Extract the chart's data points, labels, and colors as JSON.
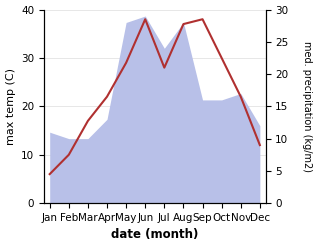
{
  "months": [
    "Jan",
    "Feb",
    "Mar",
    "Apr",
    "May",
    "Jun",
    "Jul",
    "Aug",
    "Sep",
    "Oct",
    "Nov",
    "Dec"
  ],
  "temperature": [
    6,
    10,
    17,
    22,
    29,
    38,
    28,
    37,
    38,
    30,
    22,
    12
  ],
  "precipitation": [
    11,
    10,
    10,
    13,
    28,
    29,
    24,
    28,
    16,
    16,
    17,
    12
  ],
  "temp_color": "#b03030",
  "precip_color": "#b8c0e8",
  "background_color": "#ffffff",
  "ylabel_left": "max temp (C)",
  "ylabel_right": "med. precipitation (kg/m2)",
  "xlabel": "date (month)",
  "ylim_left": [
    0,
    40
  ],
  "ylim_right": [
    0,
    30
  ],
  "label_fontsize": 8,
  "tick_fontsize": 7.5
}
